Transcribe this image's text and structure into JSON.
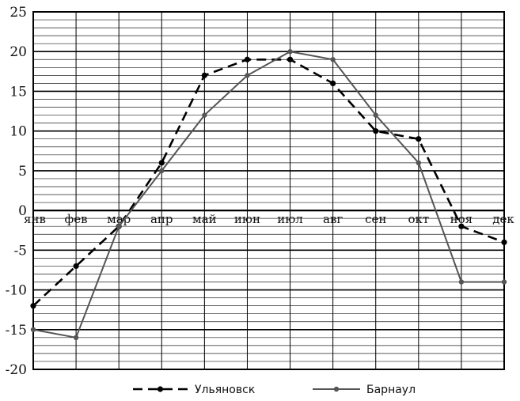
{
  "chart_data": {
    "type": "line",
    "categories": [
      "янв",
      "фев",
      "мар",
      "апр",
      "май",
      "июн",
      "июл",
      "авг",
      "сен",
      "окт",
      "ноя",
      "дек"
    ],
    "y_ticks": [
      "25",
      "20",
      "15",
      "10",
      "5",
      "0",
      "-5",
      "-10",
      "-15",
      "-20"
    ],
    "ylim": [
      -20,
      25
    ],
    "grid": true,
    "legend_position": "bottom",
    "series": [
      {
        "name": "Ульяновск",
        "style": "dashed",
        "color": "#000000",
        "values": [
          -12,
          -7,
          -2,
          6,
          17,
          19,
          19,
          16,
          10,
          9,
          -2,
          -4
        ]
      },
      {
        "name": "Барнаул",
        "style": "solid",
        "color": "#555555",
        "values": [
          -15,
          -16,
          -2,
          5,
          12,
          17,
          20,
          19,
          12,
          6,
          -9,
          -9
        ]
      }
    ]
  }
}
